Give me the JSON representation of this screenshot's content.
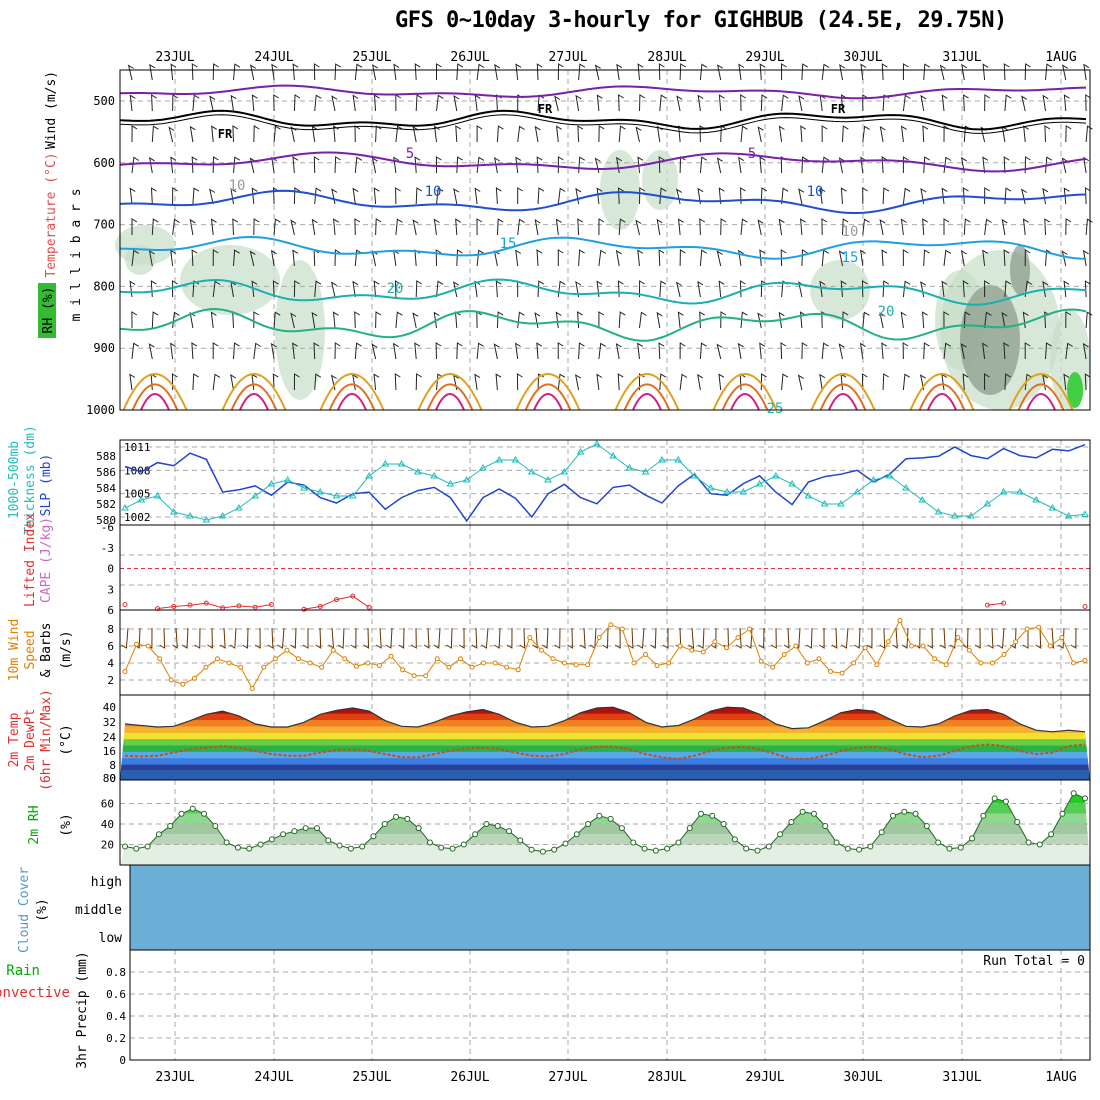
{
  "title": "GFS 0~10day 3-hourly for GIGHBUB (24.5E, 29.75N)",
  "dates": [
    "23JUL",
    "24JUL",
    "25JUL",
    "26JUL",
    "27JUL",
    "28JUL",
    "29JUL",
    "30JUL",
    "31JUL",
    "1AUG"
  ],
  "colors": {
    "wind": "#000000",
    "temperature": "#e03030",
    "rh": "#00cc00",
    "thickness": "#22bbbb",
    "slp": "#2244cc",
    "lifted": "#e03030",
    "cape": "#cc44cc",
    "wind10": "#e08000",
    "barbs": "#663300",
    "dewpt": "#e03030",
    "rh2m": "#00aa00",
    "cloud": "#6baed6",
    "precip_total": "#008800",
    "precip_conv": "#e03030"
  },
  "panels": {
    "upper": {
      "ylabels": [
        "Wind (m/s)",
        "Temperature (°C)",
        "RH (%)"
      ],
      "axis_title": "m i l l i b a r s",
      "yticks": [
        "500",
        "600",
        "700",
        "800",
        "900",
        "1000"
      ],
      "contour_labels": [
        "FR",
        "FR",
        "FR",
        "5",
        "5",
        "10",
        "10",
        "15",
        "15",
        "20",
        "20",
        "25",
        "10",
        "10"
      ]
    },
    "thickness": {
      "ylabels": [
        "1000-500mb",
        "Thickness (dm)",
        "SLP (mb)"
      ],
      "left_ticks": [
        "588",
        "586",
        "584",
        "582",
        "580"
      ],
      "right_ticks": [
        "1011",
        "1008",
        "1005",
        "1002"
      ]
    },
    "stability": {
      "ylabels": [
        "Lifted Index",
        "CAPE (J/kg)"
      ],
      "ticks": [
        "-6",
        "-3",
        "0",
        "3",
        "6"
      ]
    },
    "wind10": {
      "ylabels": [
        "10m Wind",
        "Speed",
        "& Barbs",
        "(m/s)"
      ],
      "ticks": [
        "8",
        "6",
        "4",
        "2"
      ]
    },
    "temp2m": {
      "ylabels": [
        "2m Temp",
        "2m DewPt",
        "(6hr Min/Max)",
        "(°C)"
      ],
      "ticks": [
        "40",
        "32",
        "24",
        "16",
        "8",
        "0",
        "80"
      ]
    },
    "rh2m": {
      "ylabels": [
        "2m RH",
        "(%)"
      ],
      "ticks": [
        "60",
        "40",
        "20"
      ]
    },
    "cloud": {
      "ylabels": [
        "Cloud Cover",
        "(%)"
      ],
      "levels": [
        "high",
        "middle",
        "low"
      ]
    },
    "precip": {
      "ylabels": [
        "Total / Rain",
        "Convective",
        "3hr Precip (mm)"
      ],
      "ticks": [
        "0.8",
        "0.6",
        "0.4",
        "0.2",
        "0"
      ],
      "run_total": "Run Total = 0"
    }
  },
  "chart_data": {
    "type": "line",
    "x_labels": [
      "23JUL",
      "24JUL",
      "25JUL",
      "26JUL",
      "27JUL",
      "28JUL",
      "29JUL",
      "30JUL",
      "31JUL",
      "1AUG"
    ],
    "slp_mb": [
      1008.5,
      1007.8,
      1009,
      1008.6,
      1010.2,
      1009.4,
      1005.2,
      1005.5,
      1006,
      1004.8,
      1006.5,
      1006.1,
      1004.5,
      1003.8,
      1005,
      1005.2,
      1003,
      1004.5,
      1005.4,
      1005.8,
      1004.5,
      1001.5,
      1004.5,
      1005.6,
      1004.4,
      1002,
      1005,
      1006.2,
      1004.5,
      1003.7,
      1005.8,
      1006.1,
      1004.8,
      1003.8,
      1006,
      1007.5,
      1005,
      1004.8,
      1006.3,
      1007.3,
      1005.2,
      1003.6,
      1006.5,
      1007.2,
      1007.5,
      1008,
      1006.5,
      1007.5,
      1009.5,
      1009.6,
      1009.8,
      1011,
      1009.9,
      1009.5,
      1010.8,
      1009.9,
      1009.6,
      1010.7,
      1010.5,
      1011.3
    ],
    "thickness_dm": [
      581.5,
      582.5,
      583,
      581,
      580.5,
      580,
      580.5,
      581.5,
      583,
      584.5,
      585,
      584,
      583.5,
      583,
      583,
      585.5,
      587,
      587,
      586,
      585.5,
      584.5,
      585,
      586.5,
      587.5,
      587.5,
      586,
      585,
      586,
      588.5,
      589.5,
      588,
      586.5,
      586,
      587.5,
      587.5,
      585.5,
      584,
      583.5,
      583.5,
      584.5,
      585.5,
      584.5,
      583,
      582,
      582,
      583.5,
      585,
      585.5,
      584,
      582.5,
      581,
      580.5,
      580.5,
      582,
      583.5,
      583.5,
      582.5,
      581.5,
      580.5,
      580.7
    ],
    "lifted_index": [
      5.2,
      6,
      5.8,
      5.5,
      5.3,
      5,
      5.7,
      5.4,
      5.6,
      5.2,
      6,
      5.9,
      5.5,
      4.5,
      4,
      5.6,
      6,
      6,
      6,
      6,
      6,
      6,
      6,
      6,
      6,
      6,
      6,
      6,
      6,
      6,
      6,
      6,
      6,
      6,
      6,
      6,
      6,
      6,
      6,
      6,
      6,
      6,
      6,
      6,
      6,
      6,
      6,
      6,
      6,
      6,
      6,
      6,
      6,
      5.3,
      5,
      6,
      6,
      6,
      6,
      5.5
    ],
    "wind10_speed_ms": [
      3,
      6.2,
      6,
      4.5,
      2,
      1.5,
      2.2,
      3.5,
      4.5,
      4,
      3.5,
      1,
      3.5,
      4.5,
      5.5,
      4.5,
      4,
      3.5,
      5.5,
      4.5,
      3.6,
      4,
      3.7,
      4.8,
      3.2,
      2.5,
      2.5,
      4.5,
      3.5,
      4.5,
      3.5,
      4,
      4,
      3.5,
      3.2,
      7,
      5.5,
      4.5,
      4,
      3.8,
      3.8,
      7,
      8.5,
      8,
      4,
      5,
      3.7,
      4,
      6,
      5.5,
      5.3,
      6.5,
      5.8,
      7,
      8,
      4.2,
      3.5,
      5,
      6,
      4,
      4.5,
      3,
      2.8,
      4,
      5.8,
      3.8,
      6.5,
      9,
      6,
      6,
      4.5,
      3.8,
      7,
      5.5,
      4,
      4,
      5,
      6.5,
      8,
      8.2,
      6,
      7,
      4,
      4.3
    ],
    "temp2m_c": [
      29,
      28,
      27,
      27.5,
      31,
      35,
      37,
      34,
      29,
      27,
      27,
      30,
      35,
      37.5,
      39,
      37,
      31,
      27.5,
      27,
      30,
      34,
      36.5,
      38,
      35,
      30,
      27,
      27.5,
      31,
      36,
      39,
      39.5,
      36,
      30,
      27,
      28,
      32,
      37,
      39.5,
      39,
      35,
      29,
      26,
      26.5,
      31,
      36,
      38,
      37,
      32,
      27.5,
      27,
      29,
      34,
      37.5,
      38,
      35,
      29,
      25,
      24,
      25,
      24
    ],
    "dewpt2m_c": [
      9,
      8.5,
      9,
      11,
      13,
      14,
      15,
      14,
      12,
      10,
      9,
      9,
      11,
      12.5,
      13,
      12,
      10,
      8,
      8,
      10,
      12,
      13.5,
      14,
      13,
      11,
      9,
      8.5,
      10,
      13,
      14.5,
      14.7,
      13,
      10,
      8,
      7,
      9,
      12,
      14,
      14.5,
      13,
      10,
      7,
      7,
      9,
      12,
      14,
      14.5,
      13,
      10,
      8,
      9,
      12,
      15,
      16,
      15,
      12,
      10,
      11,
      15,
      16
    ],
    "rh2m_pct": [
      18,
      16,
      18,
      30,
      38,
      50,
      55,
      50,
      38,
      22,
      17,
      16,
      20,
      25,
      30,
      33,
      36,
      36,
      24,
      19,
      16,
      18,
      28,
      40,
      47,
      45,
      36,
      22,
      17,
      16,
      20,
      30,
      40,
      38,
      33,
      24,
      15,
      13,
      15,
      21,
      30,
      40,
      48,
      45,
      36,
      22,
      16,
      14,
      16,
      22,
      36,
      50,
      48,
      40,
      25,
      16,
      14,
      18,
      30,
      42,
      52,
      50,
      38,
      22,
      16,
      15,
      18,
      32,
      48,
      52,
      50,
      38,
      22,
      16,
      17,
      26,
      48,
      65,
      62,
      42,
      22,
      20,
      30,
      50,
      70,
      65
    ]
  }
}
